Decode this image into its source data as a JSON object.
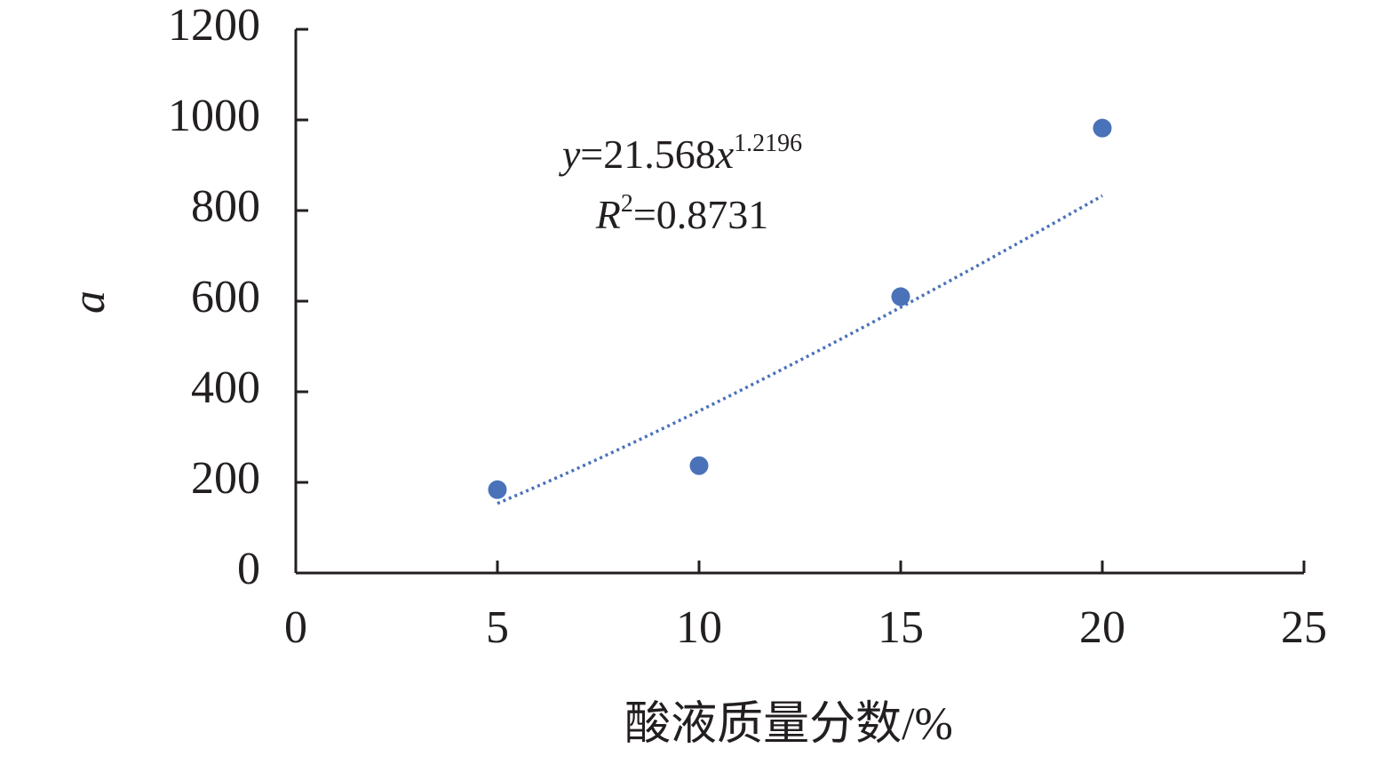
{
  "chart_data": {
    "type": "scatter",
    "x": [
      5,
      10,
      15,
      20
    ],
    "values": [
      184,
      237,
      610,
      982
    ],
    "color": "#4a72b8",
    "xlabel": "酸液质量分数/%",
    "ylabel": "a",
    "xlim": [
      0,
      25
    ],
    "xticks": [
      0,
      5,
      10,
      15,
      20,
      25
    ],
    "ylim": [
      0,
      1200
    ],
    "yticks": [
      0,
      200,
      400,
      600,
      800,
      1000,
      1200
    ],
    "grid": false,
    "trendline": {
      "type": "power",
      "coefficient": 21.568,
      "exponent": 1.2196,
      "r2": 0.8731,
      "y": "y",
      "x": "x",
      "r": "R",
      "eq": "=",
      "square": "2"
    }
  }
}
